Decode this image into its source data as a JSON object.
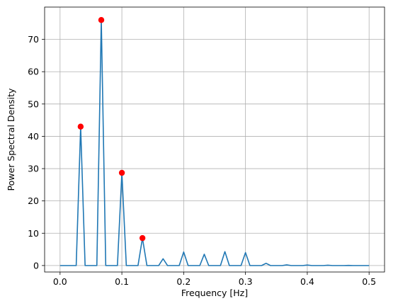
{
  "chart_data": {
    "type": "line",
    "title": "",
    "xlabel": "Frequency [Hz]",
    "ylabel": "Power Spectral Density",
    "xlim": [
      -0.025,
      0.525
    ],
    "ylim": [
      -2.0,
      80.0
    ],
    "xticks": [
      0.0,
      0.1,
      0.2,
      0.3,
      0.4,
      0.5
    ],
    "xtick_labels": [
      "0.0",
      "0.1",
      "0.2",
      "0.3",
      "0.4",
      "0.5"
    ],
    "yticks": [
      0,
      10,
      20,
      30,
      40,
      50,
      60,
      70
    ],
    "ytick_labels": [
      "0",
      "10",
      "20",
      "30",
      "40",
      "50",
      "60",
      "70"
    ],
    "grid": true,
    "line_color": "#1f77b4",
    "peak_color": "#ff0000",
    "series": [
      {
        "x": [
          0.0,
          0.0333,
          0.0667,
          0.1,
          0.1333,
          0.1667,
          0.2,
          0.2333,
          0.2667,
          0.3,
          0.3333,
          0.3667,
          0.4,
          0.4333,
          0.4667,
          0.5
        ],
        "peak_values": [
          0.0,
          43.0,
          76.0,
          28.7,
          8.5,
          2.1,
          4.2,
          3.5,
          4.3,
          4.0,
          0.7,
          0.2,
          0.15,
          0.1,
          0.05,
          0.0
        ],
        "baseline": 0.0
      }
    ],
    "peaks": {
      "x": [
        0.0333,
        0.0667,
        0.1,
        0.1333
      ],
      "y": [
        43.0,
        76.0,
        28.7,
        8.5
      ]
    }
  }
}
